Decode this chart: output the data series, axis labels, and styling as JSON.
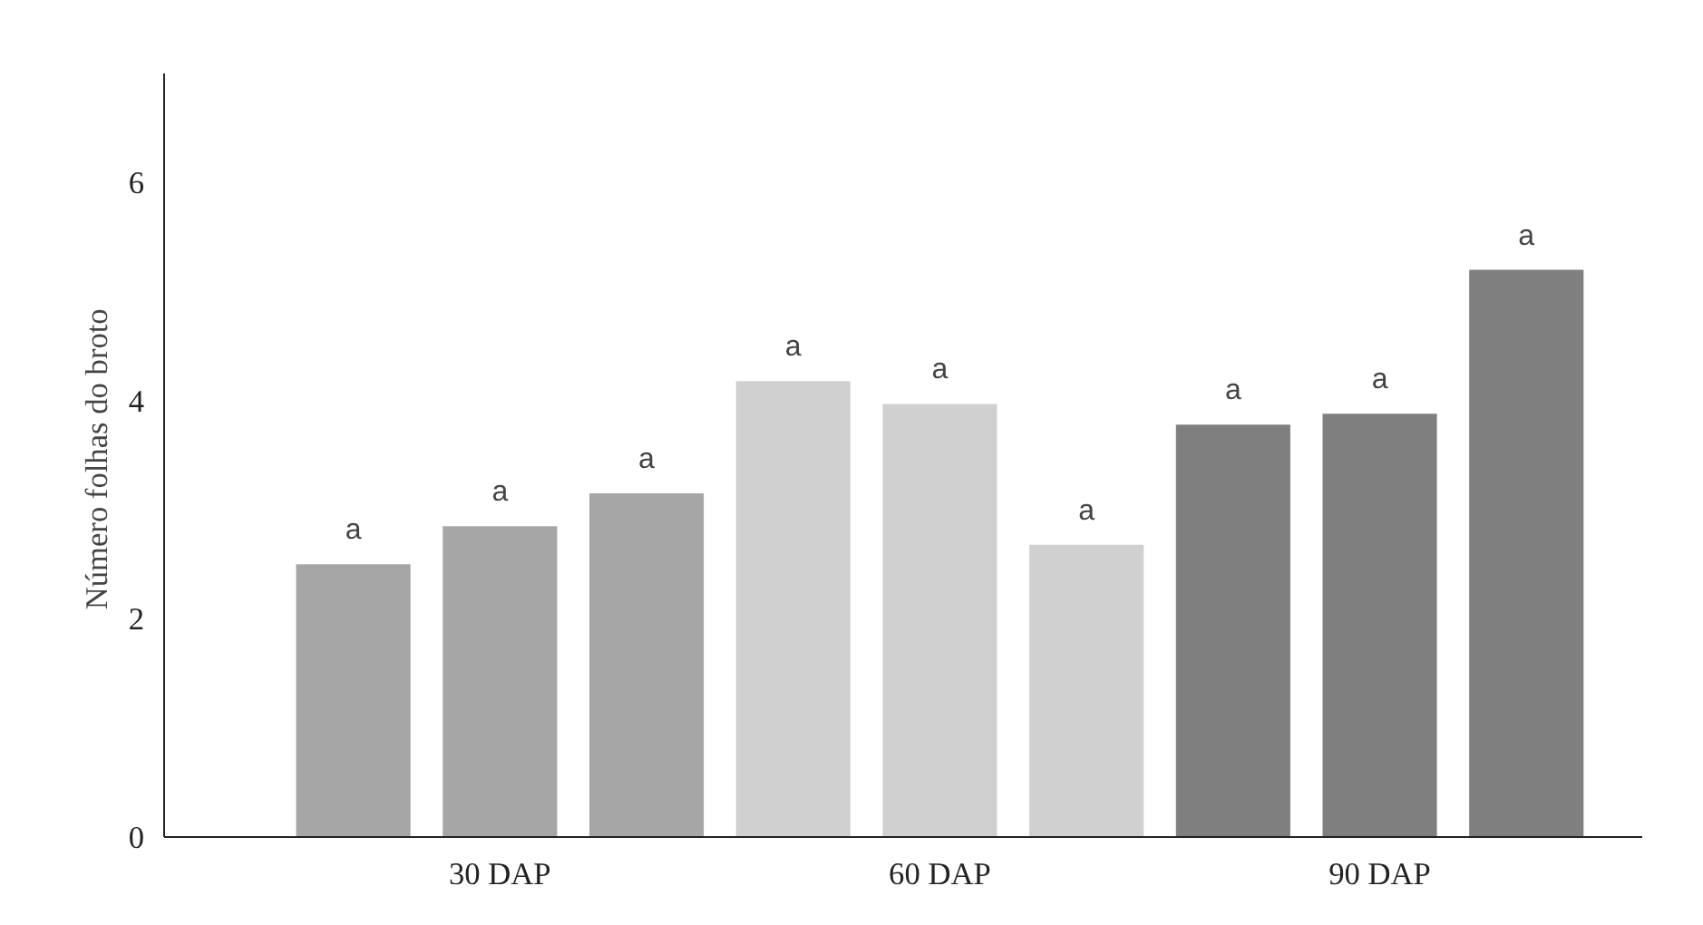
{
  "chart_data": {
    "type": "bar",
    "ylabel": "Número folhas  do broto",
    "categories": [
      null,
      "30 DAP",
      null,
      null,
      "60 DAP",
      null,
      null,
      "90 DAP",
      null
    ],
    "values": [
      2.5,
      2.85,
      3.15,
      4.18,
      3.97,
      2.68,
      3.78,
      3.88,
      5.2
    ],
    "colors": [
      "#a6a6a6",
      "#a6a6a6",
      "#a6a6a6",
      "#d0d0d0",
      "#d0d0d0",
      "#d0d0d0",
      "#7f7f7f",
      "#7f7f7f",
      "#7f7f7f"
    ],
    "value_labels": [
      "a",
      "a",
      "a",
      "a",
      "a",
      "a",
      "a",
      "a",
      "a"
    ],
    "ylim": [
      0,
      7
    ],
    "yticks": [
      0,
      2,
      4,
      6
    ],
    "grid": false
  }
}
